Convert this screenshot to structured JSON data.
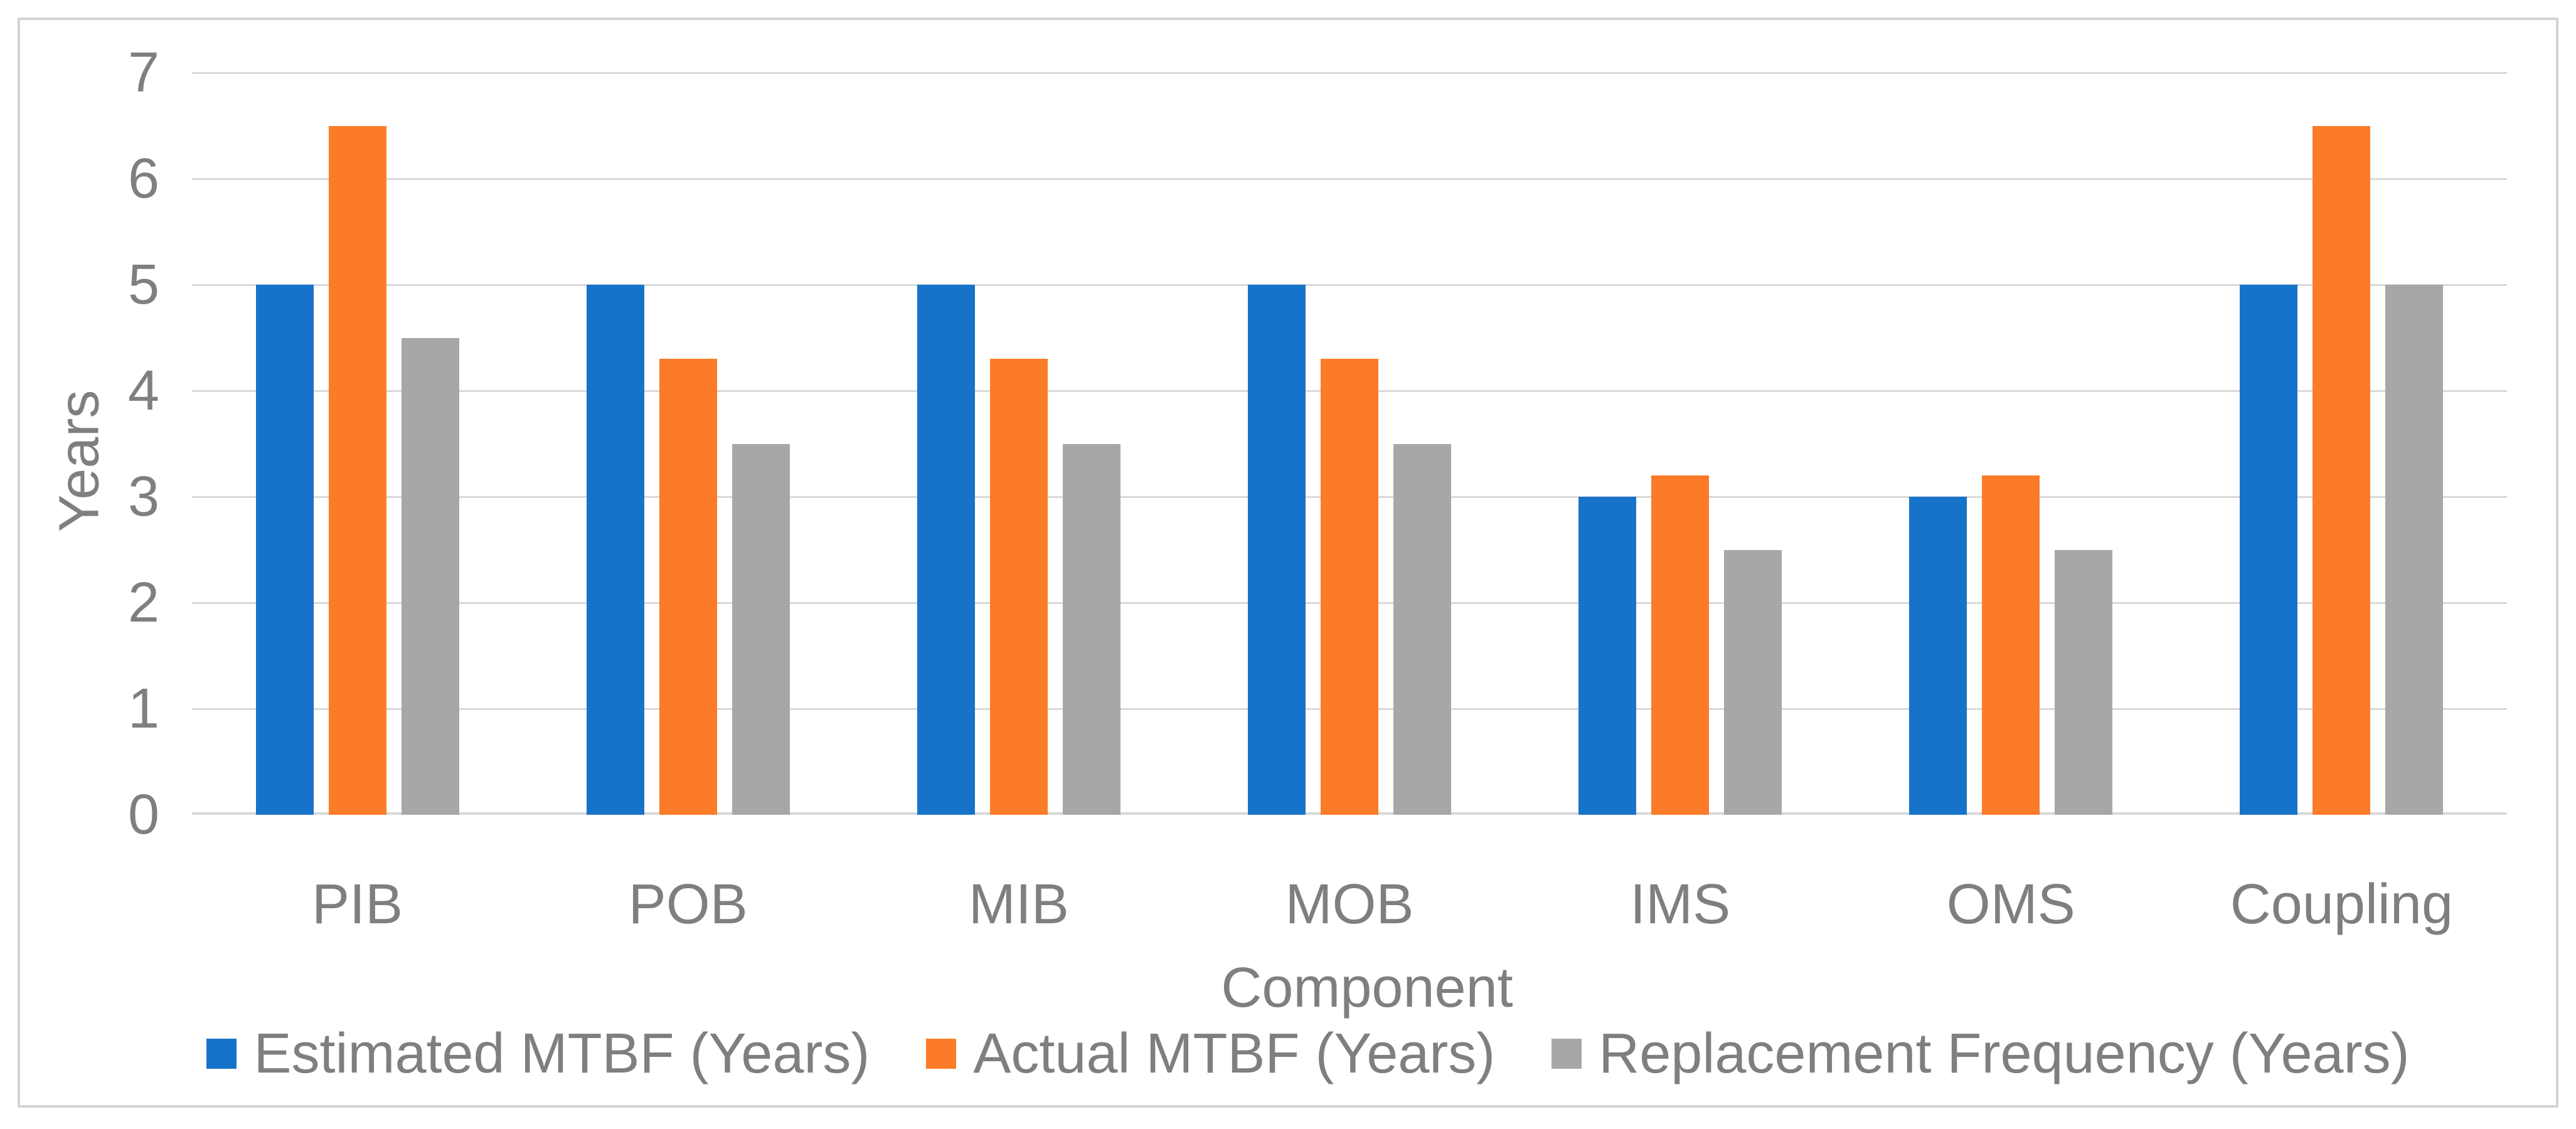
{
  "chart_data": {
    "type": "bar",
    "title": "",
    "xlabel": "Component",
    "ylabel": "Years",
    "categories": [
      "PIB",
      "POB",
      "MIB",
      "MOB",
      "IMS",
      "OMS",
      "Coupling"
    ],
    "series": [
      {
        "name": "Estimated MTBF (Years)",
        "color": "#1773C9",
        "values": [
          5,
          5,
          5,
          5,
          3,
          3,
          5
        ]
      },
      {
        "name": "Actual MTBF (Years)",
        "color": "#FB7B28",
        "values": [
          6.5,
          4.3,
          4.3,
          4.3,
          3.2,
          3.2,
          6.5
        ]
      },
      {
        "name": "Replacement Frequency (Years)",
        "color": "#A7A7A7",
        "values": [
          4.5,
          3.5,
          3.5,
          3.5,
          2.5,
          2.5,
          5
        ]
      }
    ],
    "ylim": [
      0,
      7
    ],
    "yticks": [
      0,
      1,
      2,
      3,
      4,
      5,
      6,
      7
    ],
    "grid": true,
    "legend_position": "bottom",
    "colors": {
      "text": "#7F7F7F",
      "gridline": "#D9D9D9",
      "frame_border": "#D4D4D4",
      "background": "#FFFFFF"
    }
  }
}
